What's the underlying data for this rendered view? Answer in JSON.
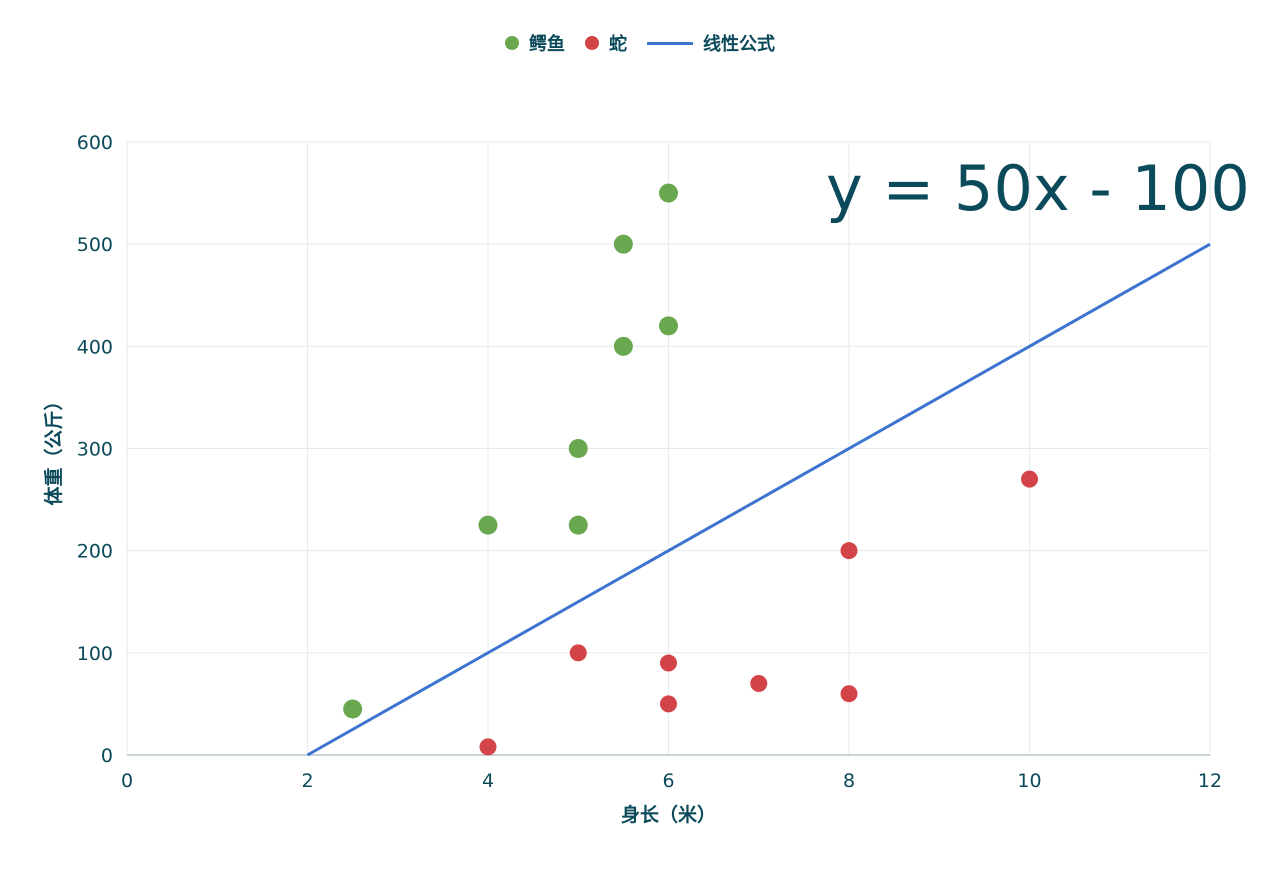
{
  "colors": {
    "crocodile": "#6aa84f",
    "snake": "#d34448",
    "formula_line": "#3c74cf",
    "text": "#0b4a5a",
    "grid": "#e5ebee",
    "axis": "#b9c5cc"
  },
  "chart_data": {
    "type": "scatter",
    "title": "",
    "xlabel": "身长（米）",
    "ylabel": "体重（公斤）",
    "xlim": [
      0,
      12
    ],
    "ylim": [
      0,
      600
    ],
    "x_ticks": [
      "0",
      "2",
      "4",
      "6",
      "8",
      "10",
      "12"
    ],
    "y_ticks": [
      "0",
      "100",
      "200",
      "300",
      "400",
      "500",
      "600"
    ],
    "grid": true,
    "legend_position": "top-center",
    "annotation": "y = 50x - 100",
    "series": [
      {
        "name": "鳄鱼",
        "kind": "scatter",
        "points": [
          {
            "x": 2.5,
            "y": 45
          },
          {
            "x": 4,
            "y": 225
          },
          {
            "x": 5,
            "y": 225
          },
          {
            "x": 5,
            "y": 300
          },
          {
            "x": 5.5,
            "y": 400
          },
          {
            "x": 5.5,
            "y": 500
          },
          {
            "x": 6,
            "y": 420
          },
          {
            "x": 6,
            "y": 550
          }
        ]
      },
      {
        "name": "蛇",
        "kind": "scatter",
        "points": [
          {
            "x": 4,
            "y": 8
          },
          {
            "x": 5,
            "y": 100
          },
          {
            "x": 6,
            "y": 90
          },
          {
            "x": 6,
            "y": 50
          },
          {
            "x": 7,
            "y": 70
          },
          {
            "x": 8,
            "y": 200
          },
          {
            "x": 8,
            "y": 60
          },
          {
            "x": 10,
            "y": 270
          }
        ]
      },
      {
        "name": "线性公式",
        "kind": "line",
        "points": [
          {
            "x": 2,
            "y": 0
          },
          {
            "x": 12,
            "y": 500
          }
        ]
      }
    ]
  }
}
